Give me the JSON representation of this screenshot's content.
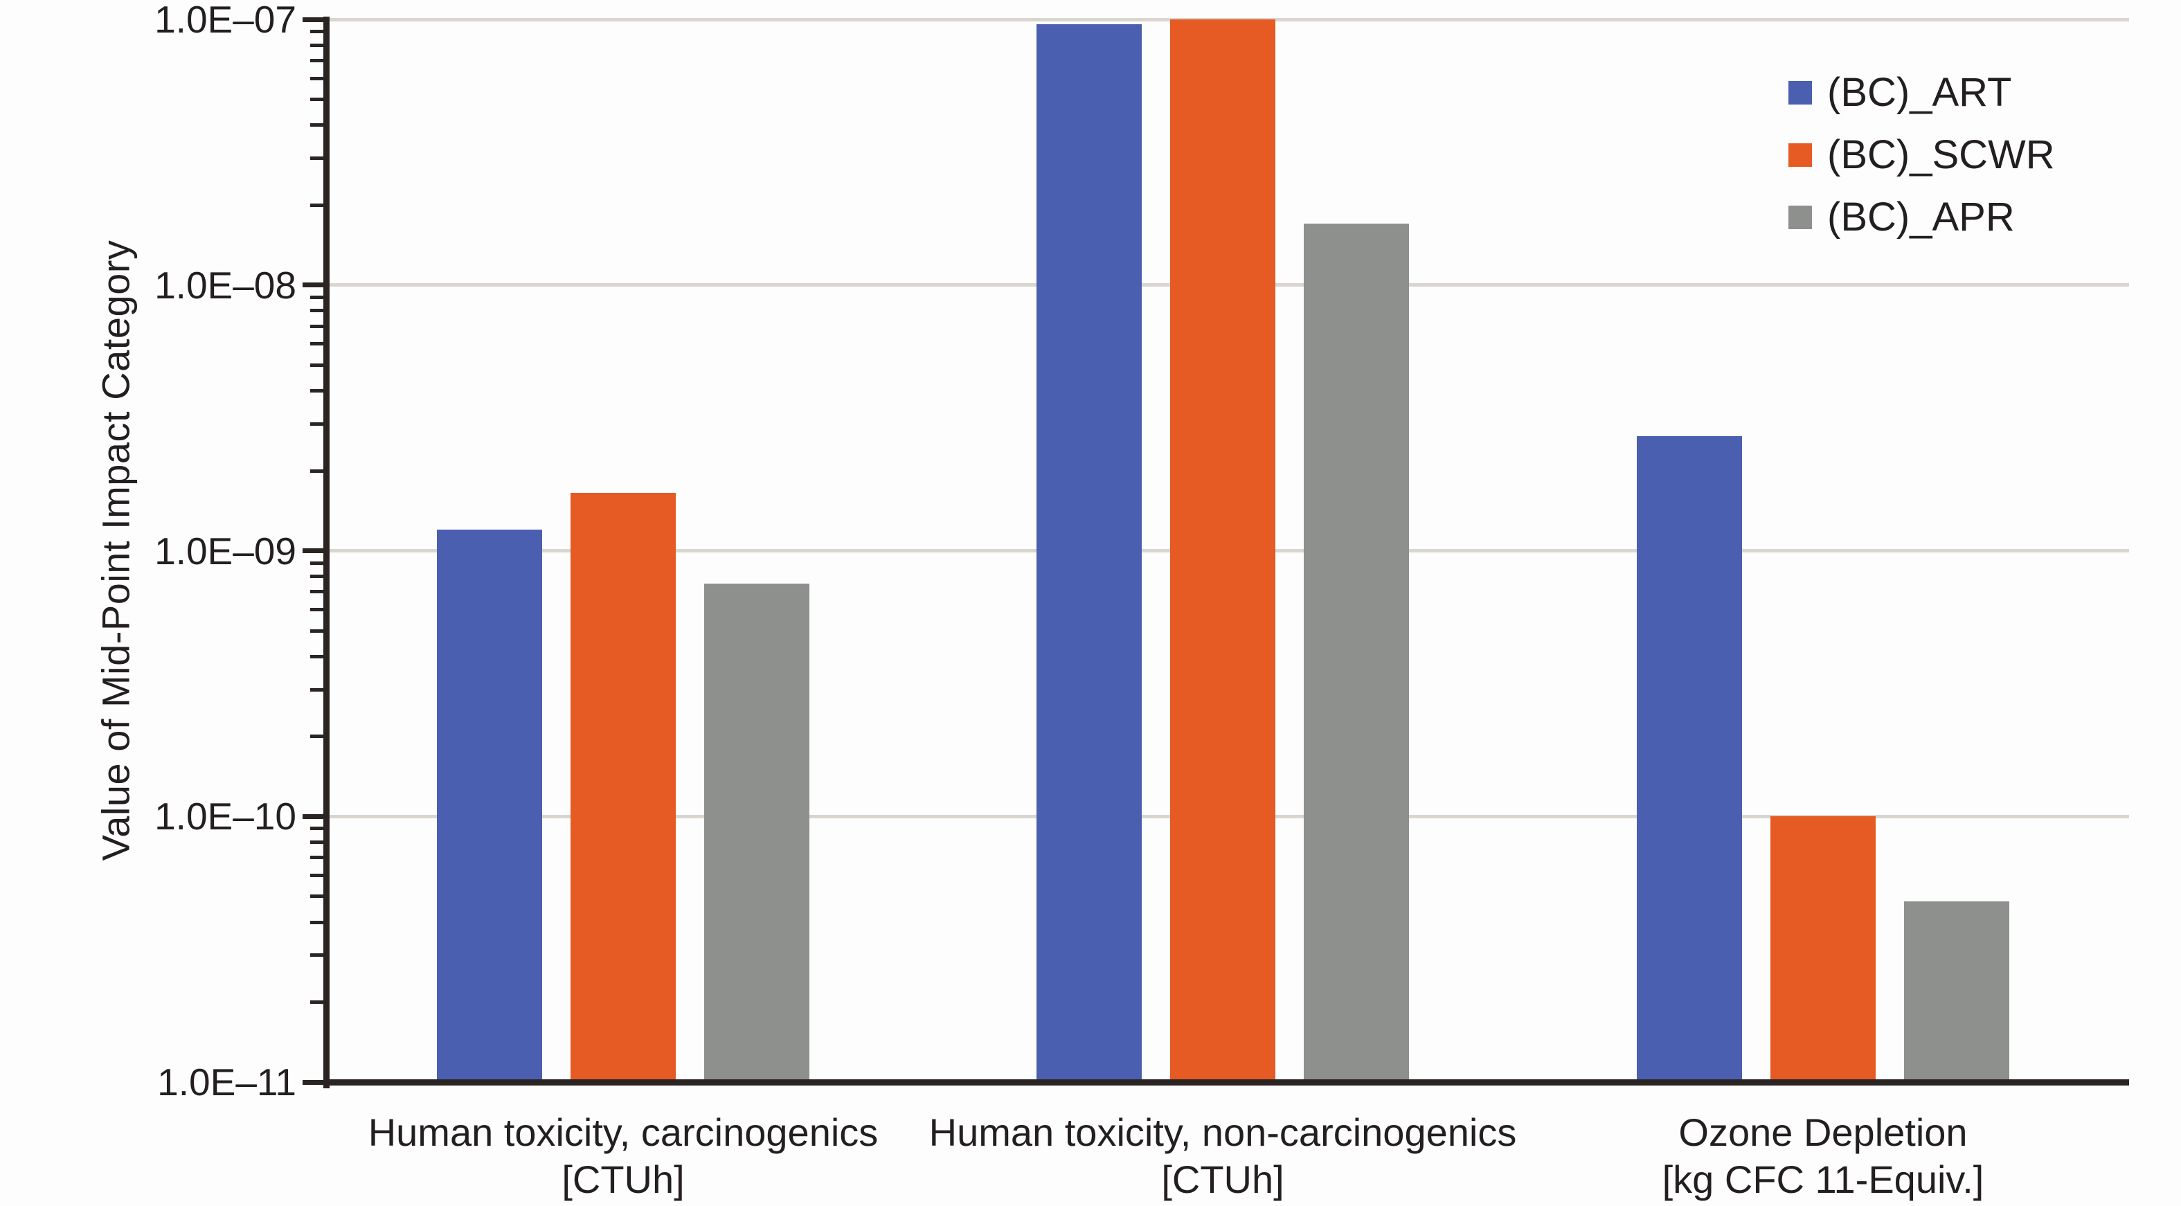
{
  "figure": {
    "background": "#fdfdfd",
    "text_color": "#231f20",
    "axis_color": "#2a2523",
    "gridline_color": "#d9d5cf"
  },
  "chart_data": {
    "type": "bar",
    "title": "",
    "xlabel": "",
    "ylabel": "Value of Mid-Point Impact Category",
    "y_scale": "log10",
    "ylim": [
      1e-11,
      1e-07
    ],
    "grid": true,
    "minor_log_ticks": true,
    "legend_position": "top-right",
    "y_ticks": [
      {
        "label": "1.0E–07",
        "value": 1e-07
      },
      {
        "label": "1.0E–08",
        "value": 1e-08
      },
      {
        "label": "1.0E–09",
        "value": 1e-09
      },
      {
        "label": "1.0E–10",
        "value": 1e-10
      },
      {
        "label": "1.0E–11",
        "value": 1e-11
      }
    ],
    "categories": [
      {
        "line1": "Human toxicity, carcinogenics",
        "line2": "[CTUh]"
      },
      {
        "line1": "Human toxicity, non-carcinogenics",
        "line2": "[CTUh]"
      },
      {
        "line1": "Ozone Depletion",
        "line2": "[kg CFC 11-Equiv.]"
      }
    ],
    "series": [
      {
        "name": "(BC)_ART",
        "color": "#4a5fb0",
        "values": [
          1.2e-09,
          9.6e-08,
          2.7e-09
        ]
      },
      {
        "name": "(BC)_SCWR",
        "color": "#e65a24",
        "values": [
          1.65e-09,
          1e-07,
          1e-10
        ]
      },
      {
        "name": "(BC)_APR",
        "color": "#8d908d",
        "values": [
          7.5e-10,
          1.7e-08,
          4.8e-11
        ]
      }
    ]
  }
}
